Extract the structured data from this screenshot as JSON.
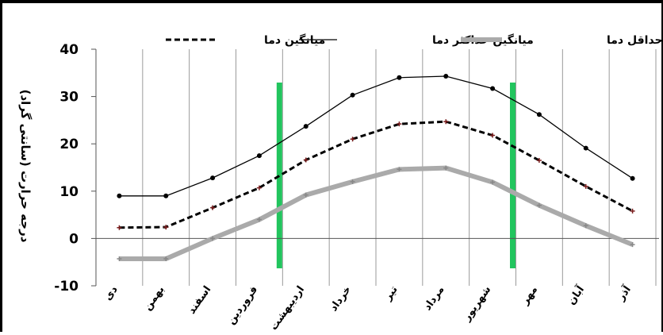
{
  "chart_data": {
    "type": "line",
    "ylabel": "درجه حرارت (سانتی گراد)",
    "categories": [
      "دی",
      "بهمن",
      "اسفند",
      "فروردین",
      "اردیبهشت",
      "خرداد",
      "تیر",
      "مرداد",
      "شهریور",
      "مهر",
      "آبان",
      "آذر"
    ],
    "ylim": [
      -10,
      40
    ],
    "yticks": [
      "-10",
      "0",
      "10",
      "20",
      "30",
      "40"
    ],
    "series": [
      {
        "name": "میانگین دما",
        "color": "#000000",
        "style": "dashed",
        "marker": "plus",
        "values": [
          2.3,
          2.4,
          6.5,
          10.7,
          16.6,
          21.0,
          24.2,
          24.7,
          21.8,
          16.5,
          11.0,
          5.8
        ]
      },
      {
        "name": "میانگین حداکثر دما",
        "color": "#000000",
        "style": "solid",
        "marker": "dot",
        "values": [
          9.0,
          9.0,
          12.8,
          17.5,
          23.7,
          30.3,
          34.0,
          34.3,
          31.7,
          26.2,
          19.1,
          12.7
        ]
      },
      {
        "name": "میانگین حداقل دما",
        "color": "#aaaaaa",
        "style": "thick",
        "marker": "plus",
        "values": [
          -4.3,
          -4.3,
          0.0,
          4.0,
          9.2,
          12.0,
          14.6,
          14.9,
          11.9,
          7.0,
          2.7,
          -1.3
        ]
      }
    ],
    "green_markers_after_category": [
      "فروردین",
      "شهریور"
    ],
    "green_color": "#22c55e",
    "grid": "vertical",
    "legend_position": "top"
  }
}
